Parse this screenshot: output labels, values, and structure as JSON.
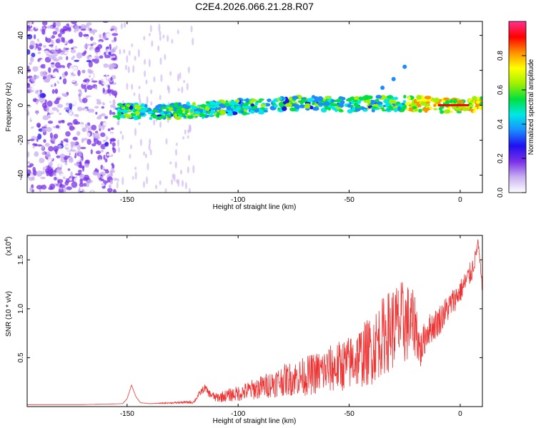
{
  "chart_data": [
    {
      "type": "heatmap",
      "title": "C2E4.2026.066.21.28.R07",
      "xlabel": "Height of straight line (km)",
      "ylabel": "Frequency (Hz)",
      "xlim": [
        -195,
        10
      ],
      "ylim": [
        -50,
        48
      ],
      "xticks": [
        -150,
        -100,
        -50,
        0
      ],
      "yticks": [
        -40,
        -20,
        0,
        20,
        40
      ],
      "colorbar": {
        "label": "Normalized spectral amplitude",
        "range": [
          0,
          1
        ],
        "ticks": [
          "0.0",
          "0.2",
          "0.4",
          "0.6",
          "0.8"
        ],
        "colors": [
          "#ffffff",
          "#c8aff0",
          "#7a30e8",
          "#2010f0",
          "#1a8cff",
          "#00e8e8",
          "#00e040",
          "#a0f000",
          "#ffff00",
          "#ff9000",
          "#ff0000",
          "#ff3090"
        ]
      },
      "features": [
        {
          "name": "broadband noise",
          "x_range": [
            -195,
            -155
          ],
          "freq_range": [
            -50,
            48
          ],
          "amplitude": 0.2
        },
        {
          "name": "main trace",
          "x_points": [
            -155,
            -140,
            -120,
            -100,
            -80,
            -70,
            -60,
            -50,
            -40,
            -30,
            -20,
            -10,
            0,
            10
          ],
          "freq_points": [
            -3,
            -4,
            -3,
            -1,
            0,
            2,
            1,
            0,
            1,
            1,
            1,
            0,
            0,
            0
          ],
          "peak_amplitude": 0.95
        },
        {
          "name": "side branch",
          "x_points": [
            -35,
            -30,
            -25
          ],
          "freq_points": [
            10,
            15,
            22
          ]
        }
      ]
    },
    {
      "type": "line",
      "xlabel": "Height of straight line (km)",
      "ylabel": "SNR (10 * v/v)",
      "scale_label": "(x10",
      "scale_exponent": "4",
      "scale_suffix": ")",
      "xlim": [
        -195,
        10
      ],
      "ylim": [
        0,
        1.75
      ],
      "xticks": [
        -150,
        -100,
        -50,
        0
      ],
      "yticks": [
        "0.5",
        "1.0",
        "1.5"
      ],
      "color": "#ee3333",
      "series": [
        {
          "name": "SNR",
          "x": [
            -195,
            -170,
            -152,
            -150,
            -148,
            -146,
            -144,
            -140,
            -130,
            -120,
            -117,
            -115,
            -113,
            -110,
            -100,
            -90,
            -80,
            -70,
            -60,
            -50,
            -40,
            -35,
            -30,
            -25,
            -20,
            -18,
            -15,
            -10,
            -5,
            0,
            5,
            7,
            8,
            10
          ],
          "y": [
            0.02,
            0.02,
            0.03,
            0.08,
            0.22,
            0.1,
            0.04,
            0.03,
            0.04,
            0.05,
            0.15,
            0.2,
            0.14,
            0.1,
            0.15,
            0.22,
            0.3,
            0.35,
            0.42,
            0.5,
            0.65,
            0.8,
            0.9,
            0.95,
            0.9,
            0.6,
            0.8,
            0.9,
            1.05,
            1.2,
            1.4,
            1.55,
            1.7,
            1.2
          ],
          "spread": [
            0.0,
            0.0,
            0.0,
            0.0,
            0.0,
            0.0,
            0.0,
            0.0,
            0.01,
            0.02,
            0.04,
            0.05,
            0.05,
            0.06,
            0.1,
            0.15,
            0.2,
            0.25,
            0.3,
            0.35,
            0.45,
            0.5,
            0.55,
            0.55,
            0.4,
            0.25,
            0.2,
            0.2,
            0.18,
            0.15,
            0.15,
            0.1,
            0.05,
            0.1
          ]
        }
      ]
    }
  ]
}
